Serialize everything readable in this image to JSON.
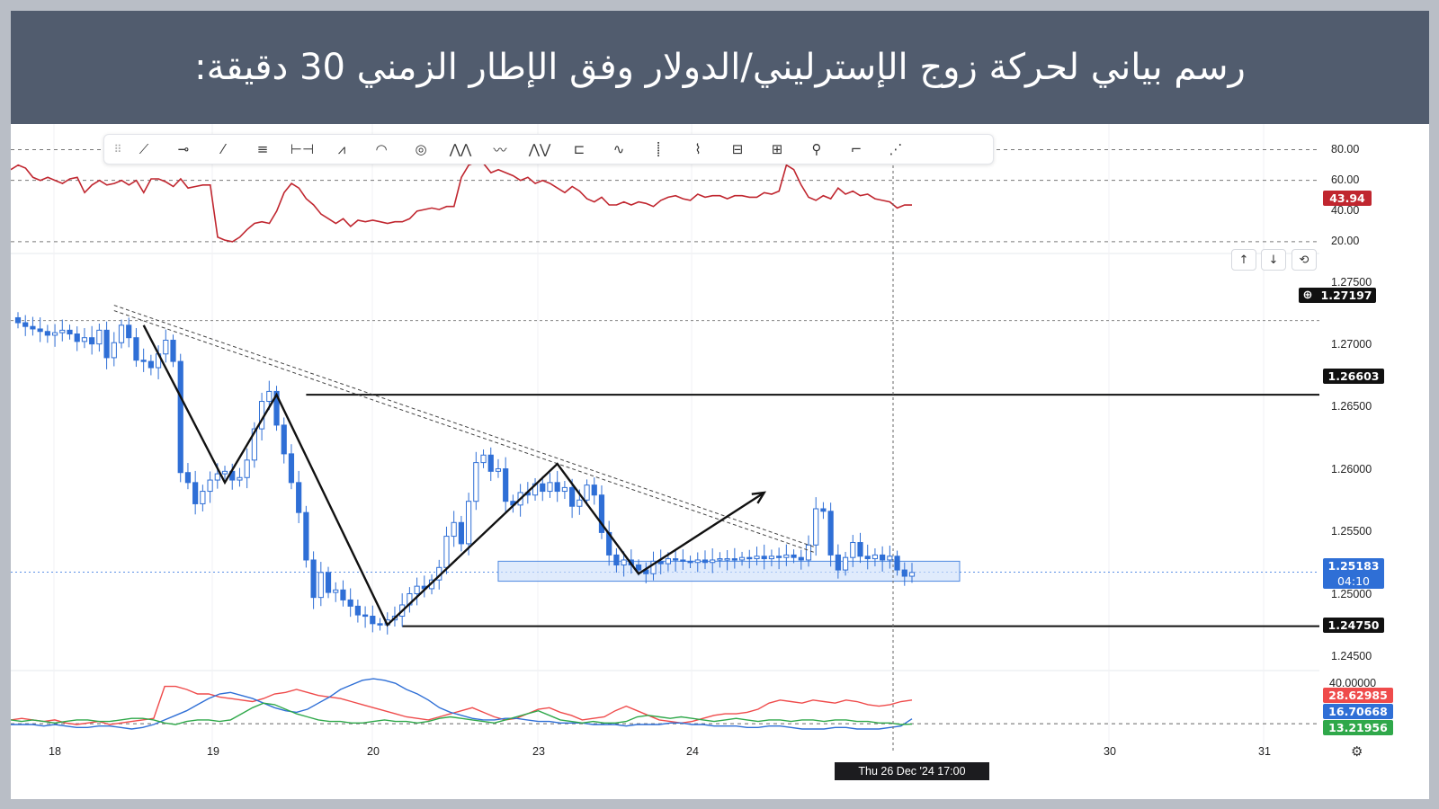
{
  "banner": {
    "title": "رسم بياني لحركة زوج الإسترليني/الدولار وفق الإطار الزمني 30 دقيقة:"
  },
  "toolbar": {
    "tools": [
      "grip-icon",
      "ray-icon",
      "horizontal-ray-icon",
      "trend-line-icon",
      "parallel-channel-icon",
      "date-range-icon",
      "fib-icon",
      "arc-icon",
      "circle-icon",
      "pattern-icon",
      "zigzag-icon",
      "elliott-wave-icon",
      "long-position-icon",
      "path-icon",
      "vertical-line-icon",
      "brush-icon",
      "ruler-icon",
      "gann-icon",
      "anchor-icon",
      "price-line-icon",
      "fib-fan-icon"
    ]
  },
  "colors": {
    "rsi": "#c0262f",
    "candle": "#2f6fd6",
    "zone": "#cfe1fb",
    "zone_border": "#4d87e0",
    "adx_red": "#ef4b4b",
    "adx_blue": "#2f6fd6",
    "adx_green": "#2fa84a",
    "dark": "#111111"
  },
  "axis": {
    "x_ticks": [
      "18",
      "19",
      "20",
      "23",
      "24",
      "30",
      "31"
    ],
    "rsi_ticks": [
      "80.00",
      "60.00",
      "40.00",
      "20.00"
    ],
    "price_ticks": [
      "1.27500",
      "1.27000",
      "1.26500",
      "1.26000",
      "1.25500",
      "1.25000",
      "1.24500"
    ],
    "adx_tick": "40.00000"
  },
  "tags": {
    "rsi": "43.94",
    "crosshair": "1.27197",
    "resistance": "1.26603",
    "current_price": "1.25183",
    "countdown": "04:10",
    "support": "1.24750",
    "adx_red": "28.62985",
    "adx_blue": "16.70668",
    "adx_green": "13.21956"
  },
  "crosshair_time": "Thu 26 Dec '24   17:00",
  "buttons": {
    "up": "↑",
    "down": "↓",
    "refresh": "⟲"
  },
  "chart_data": [
    {
      "type": "line",
      "name_role": "rsi-panel",
      "ylim": [
        10,
        85
      ],
      "reference_lines": [
        80,
        60,
        20
      ],
      "y_ticks": [
        80,
        60,
        40,
        20
      ],
      "last_value": 43.94,
      "values": [
        67,
        70,
        68,
        62,
        60,
        62,
        60,
        58,
        61,
        62,
        52,
        57,
        60,
        57,
        58,
        60,
        57,
        60,
        52,
        61,
        61,
        59,
        56,
        61,
        55,
        56,
        57,
        57,
        23,
        21,
        20,
        23,
        28,
        32,
        33,
        32,
        40,
        52,
        58,
        55,
        48,
        44,
        38,
        35,
        32,
        35,
        30,
        34,
        33,
        34,
        33,
        32,
        33,
        33,
        35,
        40,
        41,
        42,
        41,
        43,
        43,
        62,
        70,
        72,
        71,
        65,
        67,
        65,
        63,
        60,
        62,
        58,
        60,
        58,
        55,
        52,
        56,
        53,
        48,
        46,
        49,
        44,
        44,
        46,
        44,
        46,
        45,
        43,
        47,
        49,
        50,
        48,
        47,
        51,
        49,
        50,
        50,
        48,
        50,
        50,
        49,
        49,
        52,
        51,
        53,
        70,
        67,
        57,
        49,
        47,
        50,
        48,
        55,
        51,
        53,
        50,
        51,
        48,
        47,
        46,
        42,
        44,
        43.94
      ]
    },
    {
      "type": "candlestick",
      "name_role": "price-panel",
      "ylim": [
        1.2438,
        1.2772
      ],
      "y_ticks": [
        1.275,
        1.27,
        1.265,
        1.26,
        1.255,
        1.25,
        1.245
      ],
      "x_ticks": [
        "18",
        "19",
        "20",
        "23",
        "24",
        "30",
        "31"
      ],
      "horizontal_levels": [
        1.26603,
        1.2475
      ],
      "current_price": 1.25183,
      "support_zone": [
        1.2511,
        1.2527
      ],
      "close_series": [
        1.2718,
        1.2715,
        1.2713,
        1.2711,
        1.2708,
        1.271,
        1.2712,
        1.2709,
        1.2703,
        1.2706,
        1.2701,
        1.2712,
        1.269,
        1.2702,
        1.2716,
        1.2706,
        1.2688,
        1.2687,
        1.2682,
        1.2693,
        1.2704,
        1.2687,
        1.2598,
        1.259,
        1.2573,
        1.2583,
        1.2592,
        1.2597,
        1.2599,
        1.2592,
        1.2594,
        1.2608,
        1.2633,
        1.2655,
        1.2663,
        1.2636,
        1.2613,
        1.259,
        1.2566,
        1.2528,
        1.2498,
        1.2518,
        1.2502,
        1.2504,
        1.2496,
        1.2491,
        1.2484,
        1.2483,
        1.2477,
        1.2476,
        1.248,
        1.2483,
        1.2492,
        1.2501,
        1.2507,
        1.2505,
        1.2512,
        1.2522,
        1.2547,
        1.2558,
        1.2541,
        1.2575,
        1.2606,
        1.2612,
        1.2599,
        1.2601,
        1.2575,
        1.2572,
        1.2582,
        1.258,
        1.2589,
        1.2583,
        1.259,
        1.2583,
        1.2586,
        1.2571,
        1.2576,
        1.2588,
        1.258,
        1.255,
        1.2532,
        1.2524,
        1.2528,
        1.2524,
        1.252,
        1.2517,
        1.2527,
        1.2525,
        1.2529,
        1.2528,
        1.2527,
        1.2526,
        1.2528,
        1.2526,
        1.2528,
        1.2529,
        1.2529,
        1.2528,
        1.253,
        1.2529,
        1.2531,
        1.2529,
        1.2531,
        1.253,
        1.2532,
        1.253,
        1.2528,
        1.254,
        1.2569,
        1.2567,
        1.2532,
        1.252,
        1.253,
        1.2542,
        1.2531,
        1.2529,
        1.2532,
        1.2528,
        1.2531,
        1.252,
        1.2515,
        1.2518
      ],
      "zigzag": [
        1.2716,
        1.259,
        1.26603,
        1.2476,
        1.2605,
        1.2517,
        1.2582
      ],
      "trendline": [
        1.2732,
        1.2538
      ]
    },
    {
      "type": "line",
      "name_role": "adx-panel",
      "ylim": [
        0,
        46
      ],
      "y_ticks": [
        40
      ],
      "reference_lines": [
        13.5
      ],
      "series": [
        {
          "color_key": "adx_red",
          "last": 28.62985,
          "values": [
            16,
            17,
            16,
            15,
            16,
            14,
            13,
            14,
            15,
            13,
            14,
            15,
            16,
            17,
            38,
            38,
            36,
            33,
            33,
            31,
            30,
            29,
            28,
            30,
            33,
            34,
            36,
            34,
            32,
            31,
            30,
            28,
            26,
            24,
            22,
            20,
            18,
            17,
            16,
            18,
            20,
            22,
            24,
            21,
            18,
            16,
            17,
            20,
            23,
            24,
            21,
            19,
            16,
            17,
            18,
            22,
            25,
            22,
            19,
            16,
            15,
            14,
            15,
            17,
            19,
            20,
            20,
            21,
            23,
            27,
            29,
            28,
            27,
            29,
            28,
            27,
            29,
            28,
            26,
            25,
            26,
            28,
            29
          ]
        },
        {
          "color_key": "adx_blue",
          "last": 16.70668,
          "values": [
            13,
            13,
            13,
            12,
            13,
            12,
            11,
            11,
            12,
            12,
            11,
            10,
            11,
            13,
            16,
            19,
            22,
            26,
            30,
            33,
            34,
            32,
            30,
            27,
            24,
            22,
            21,
            23,
            27,
            31,
            36,
            39,
            42,
            43,
            42,
            40,
            36,
            33,
            29,
            24,
            21,
            19,
            17,
            16,
            16,
            17,
            17,
            16,
            15,
            15,
            14,
            14,
            14,
            13,
            13,
            13,
            12,
            13,
            13,
            13,
            14,
            14,
            13,
            13,
            12,
            12,
            12,
            11,
            11,
            12,
            12,
            11,
            10,
            10,
            10,
            11,
            11,
            10,
            10,
            10,
            11,
            12,
            16.7
          ]
        },
        {
          "color_key": "adx_green",
          "last": 13.21956,
          "values": [
            16,
            15,
            16,
            15,
            14,
            15,
            16,
            16,
            15,
            15,
            16,
            17,
            17,
            16,
            14,
            13,
            15,
            16,
            16,
            15,
            16,
            20,
            24,
            27,
            26,
            23,
            20,
            18,
            16,
            15,
            15,
            14,
            14,
            15,
            16,
            15,
            15,
            14,
            15,
            17,
            18,
            17,
            16,
            15,
            14,
            16,
            18,
            20,
            22,
            19,
            16,
            15,
            14,
            15,
            14,
            14,
            15,
            18,
            19,
            18,
            17,
            18,
            17,
            16,
            15,
            16,
            17,
            16,
            15,
            16,
            16,
            15,
            16,
            16,
            15,
            16,
            16,
            15,
            15,
            14,
            14,
            13,
            13.2
          ]
        }
      ]
    }
  ]
}
